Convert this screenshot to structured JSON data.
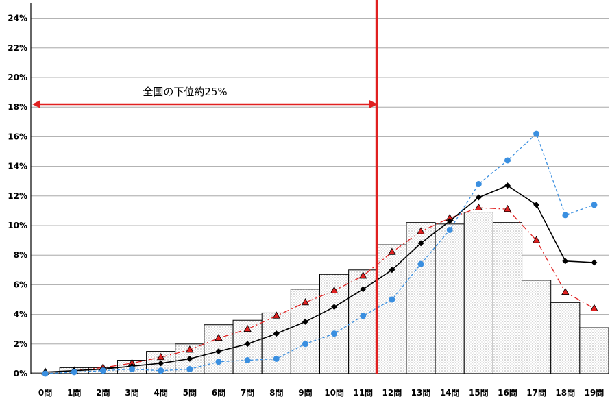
{
  "chart_data": {
    "type": "bar",
    "categories": [
      "0問",
      "1問",
      "2問",
      "3問",
      "4問",
      "5問",
      "6問",
      "7問",
      "8問",
      "9問",
      "10問",
      "11問",
      "12問",
      "13問",
      "14問",
      "15問",
      "16問",
      "17問",
      "18問",
      "19問"
    ],
    "ylim": [
      0,
      25
    ],
    "yticks": [
      "0%",
      "2%",
      "4%",
      "6%",
      "8%",
      "10%",
      "12%",
      "14%",
      "16%",
      "18%",
      "20%",
      "22%",
      "24%"
    ],
    "grid": true,
    "series": [
      {
        "type": "bar",
        "color": "#000000",
        "values": [
          0.1,
          0.4,
          0.4,
          0.9,
          1.5,
          2.0,
          3.3,
          3.6,
          4.1,
          5.7,
          6.7,
          7.0,
          8.7,
          10.2,
          10.1,
          10.9,
          10.2,
          6.3,
          4.8,
          3.1
        ]
      },
      {
        "type": "line",
        "marker": "triangle",
        "color": "#e02020",
        "dash": "dashdot",
        "values": [
          0.1,
          0.2,
          0.4,
          0.7,
          1.1,
          1.6,
          2.4,
          3.0,
          3.9,
          4.8,
          5.6,
          6.6,
          8.2,
          9.6,
          10.5,
          11.2,
          11.1,
          9.0,
          5.5,
          4.4
        ]
      },
      {
        "type": "line",
        "marker": "diamond",
        "color": "#000000",
        "dash": "solid",
        "values": [
          0.1,
          0.2,
          0.3,
          0.5,
          0.7,
          1.0,
          1.5,
          2.0,
          2.7,
          3.5,
          4.5,
          5.7,
          7.0,
          8.8,
          10.3,
          11.9,
          12.7,
          11.4,
          7.6,
          7.5
        ]
      },
      {
        "type": "line",
        "marker": "circle",
        "color": "#3a8fe0",
        "dash": "dashed",
        "values": [
          0.0,
          0.1,
          0.2,
          0.3,
          0.2,
          0.3,
          0.8,
          0.9,
          1.0,
          2.0,
          2.7,
          3.9,
          5.0,
          7.4,
          9.7,
          12.8,
          14.4,
          16.2,
          10.7,
          11.4
        ]
      }
    ],
    "annotation": {
      "text": "全国の下位約25%",
      "arrow_color": "#e02020"
    },
    "divider": {
      "color": "#e02020"
    }
  }
}
